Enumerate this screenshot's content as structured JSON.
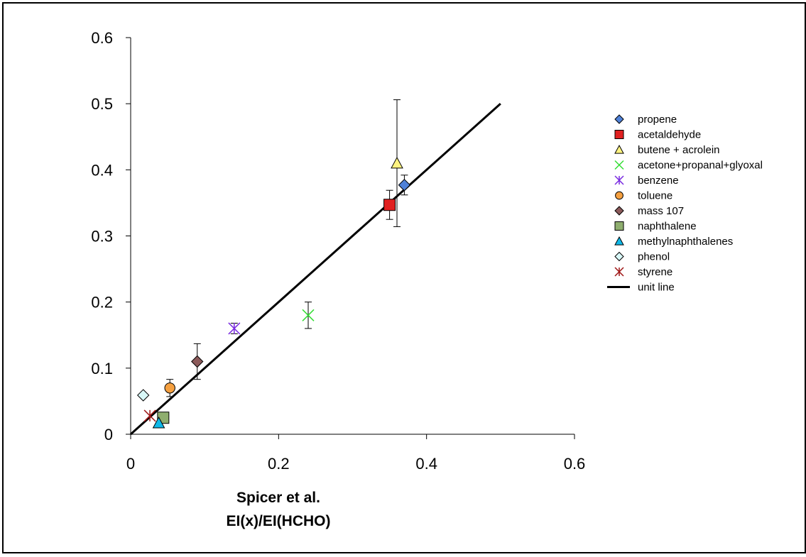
{
  "chart_data": {
    "type": "scatter",
    "title": "",
    "xlabel_line1": "Spicer et al.",
    "xlabel_line2": "EI(x)/EI(HCHO)",
    "ylabel": "",
    "xlim": [
      0,
      0.6
    ],
    "ylim": [
      0,
      0.6
    ],
    "x_ticks": [
      "0",
      "0.2",
      "0.4",
      "0.6"
    ],
    "y_ticks": [
      "0",
      "0.1",
      "0.2",
      "0.3",
      "0.4",
      "0.5",
      "0.6"
    ],
    "x_tick_values": [
      0,
      0.2,
      0.4,
      0.6
    ],
    "y_tick_values": [
      0,
      0.1,
      0.2,
      0.3,
      0.4,
      0.5,
      0.6
    ],
    "grid": false,
    "legend_position": "right",
    "series": [
      {
        "name": "propene",
        "marker": "diamond",
        "color": "#4f81d8",
        "x": 0.37,
        "y": 0.377,
        "err": 0.015
      },
      {
        "name": "acetaldehyde",
        "marker": "square",
        "color": "#e02020",
        "x": 0.35,
        "y": 0.347,
        "err": 0.022
      },
      {
        "name": "butene + acrolein",
        "marker": "triangle",
        "color": "#fff380",
        "x": 0.36,
        "y": 0.41,
        "err": 0.096
      },
      {
        "name": "acetone+propanal+glyoxal",
        "marker": "x",
        "color": "#33dd33",
        "x": 0.24,
        "y": 0.18,
        "err": 0.02
      },
      {
        "name": "benzene",
        "marker": "star",
        "color": "#7a2ce0",
        "x": 0.14,
        "y": 0.16,
        "err": 0.008
      },
      {
        "name": "toluene",
        "marker": "circle",
        "color": "#f5a040",
        "x": 0.053,
        "y": 0.07,
        "err": 0.013
      },
      {
        "name": "mass 107",
        "marker": "diamond",
        "color": "#8b5a5a",
        "x": 0.09,
        "y": 0.11,
        "err": 0.027
      },
      {
        "name": "naphthalene",
        "marker": "square",
        "color": "#8fae6f",
        "x": 0.044,
        "y": 0.025,
        "err": 0.008
      },
      {
        "name": "methylnaphthalenes",
        "marker": "triangle",
        "color": "#10b8e8",
        "x": 0.038,
        "y": 0.017,
        "err": 0
      },
      {
        "name": "phenol",
        "marker": "diamond",
        "color": "#d8f8f8",
        "x": 0.017,
        "y": 0.059,
        "err": 0
      },
      {
        "name": "styrene",
        "marker": "star",
        "color": "#a01818",
        "x": 0.026,
        "y": 0.028,
        "err": 0
      },
      {
        "name": "unit line",
        "marker": "line",
        "color": "#000000",
        "x": [
          0,
          0.5
        ],
        "y": [
          0,
          0.5
        ]
      }
    ]
  }
}
